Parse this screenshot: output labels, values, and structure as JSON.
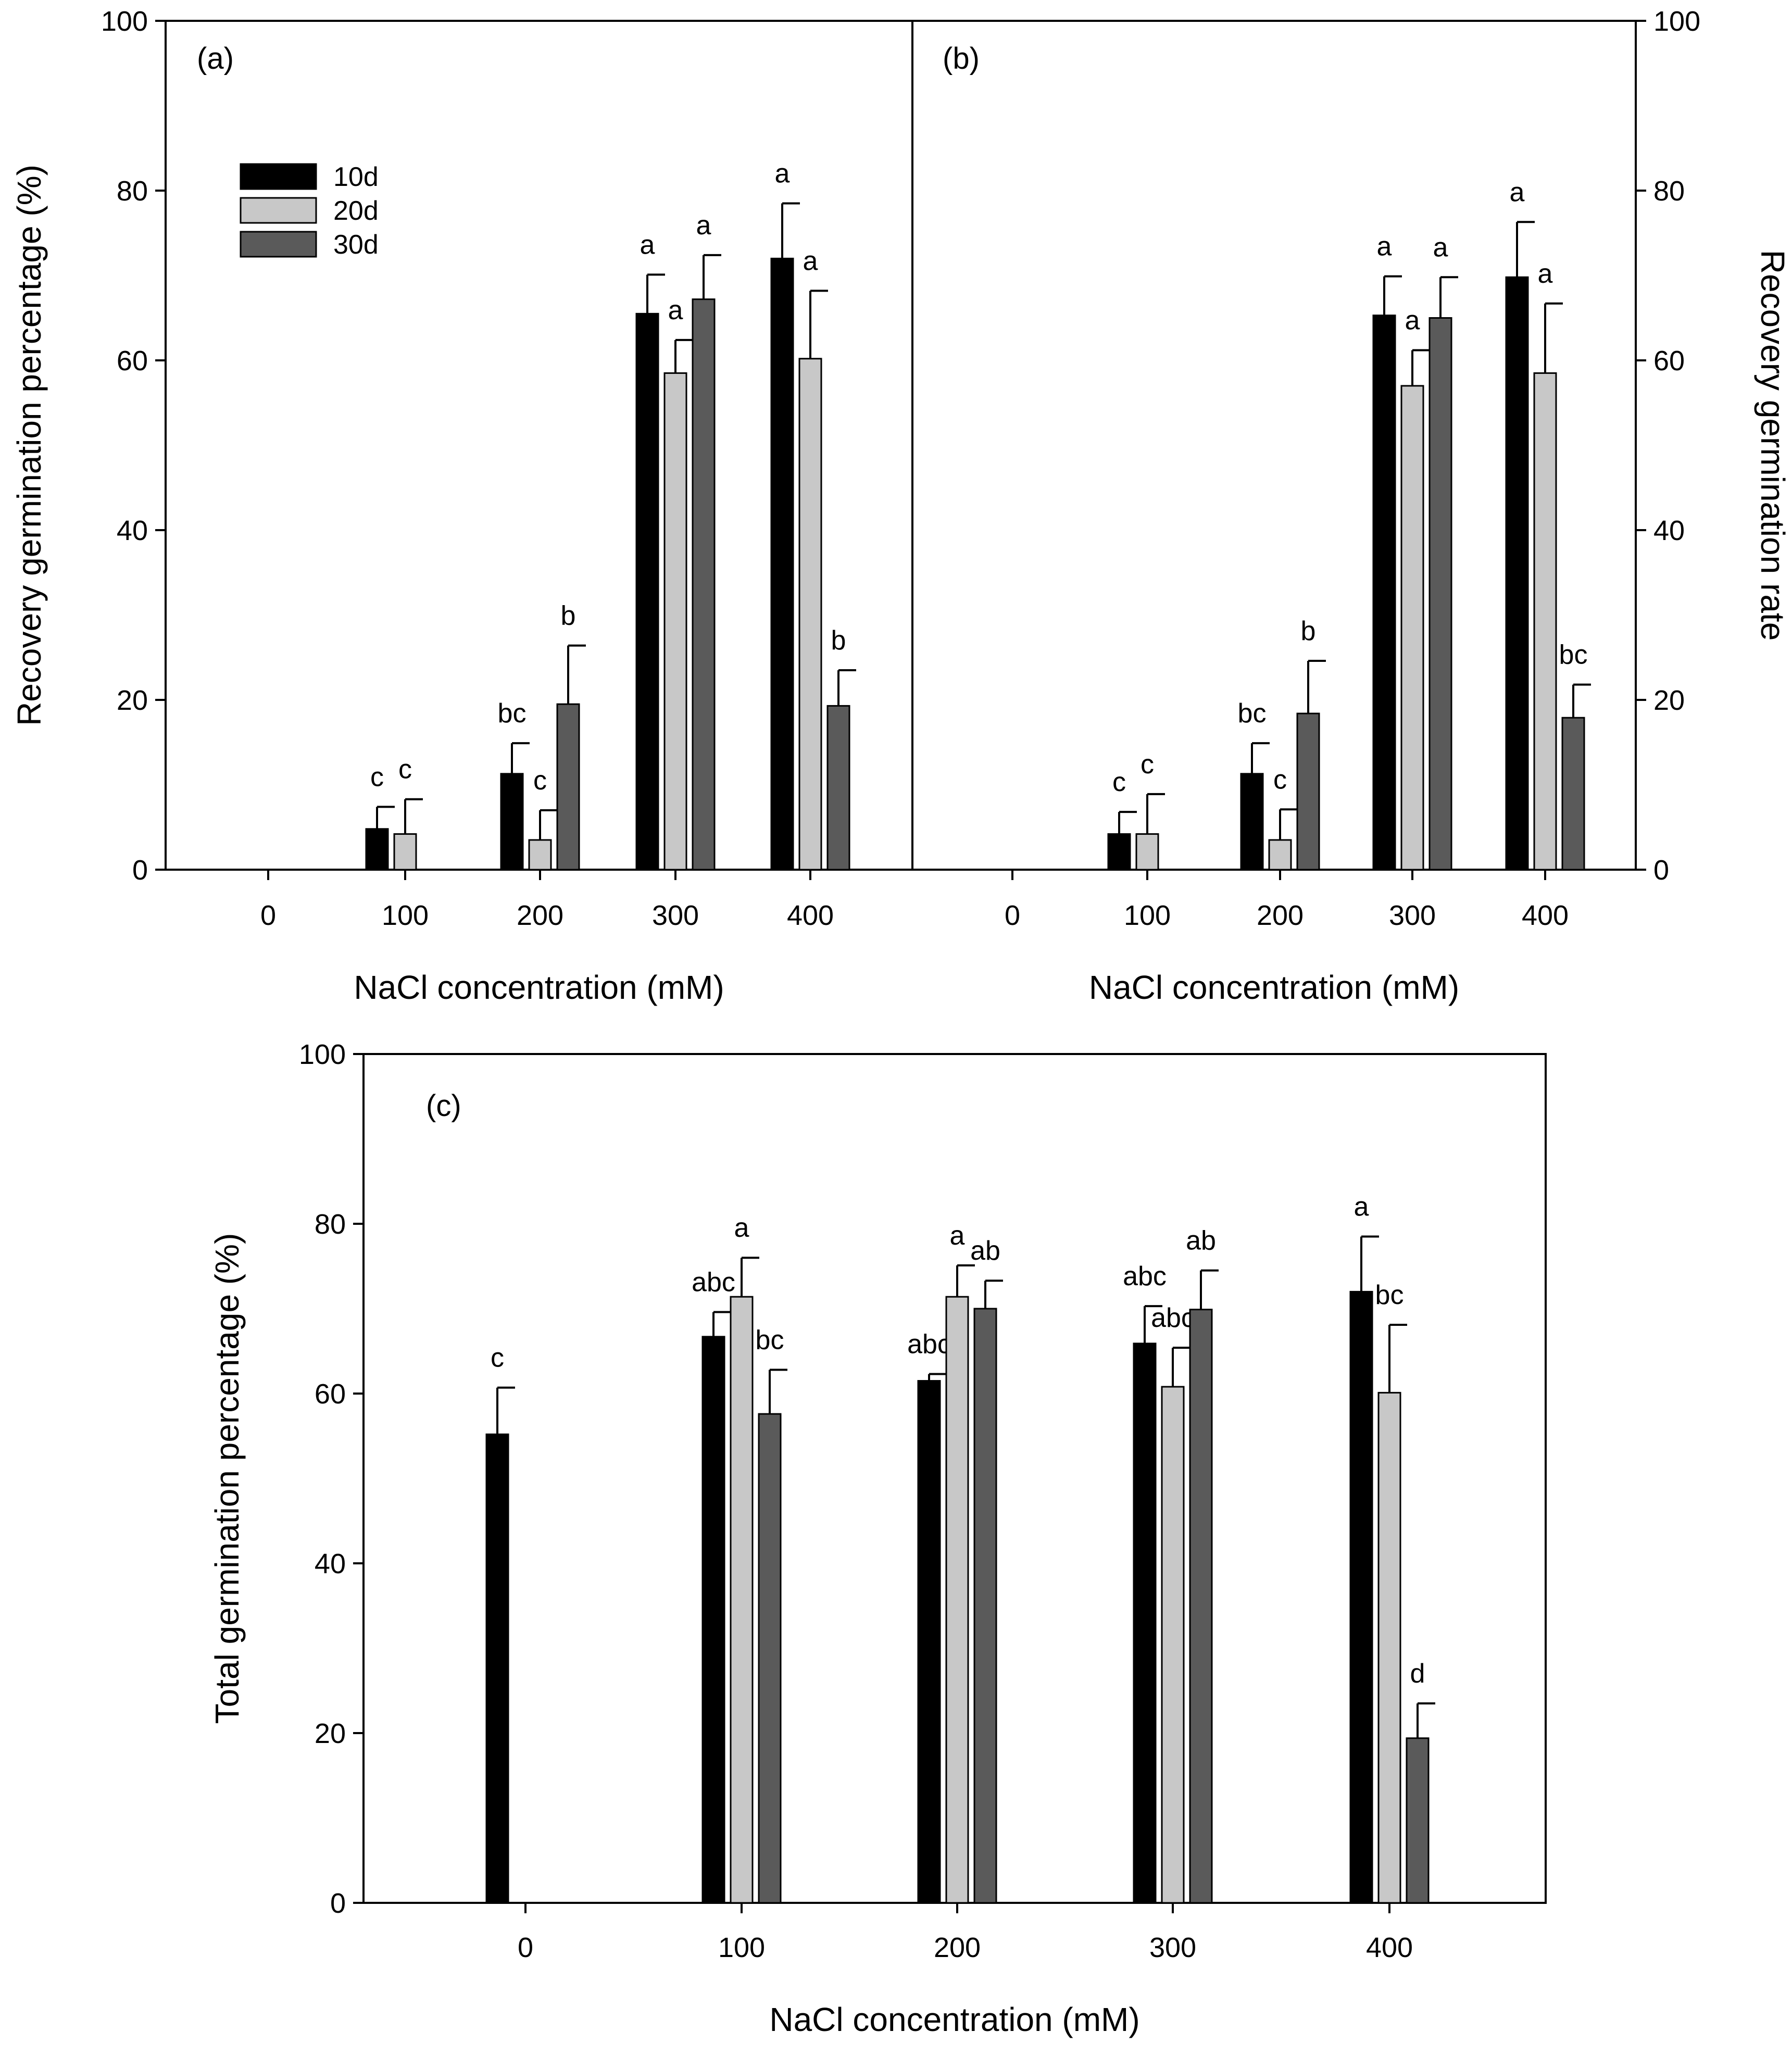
{
  "figure": {
    "legend": [
      {
        "label": "10d",
        "color": "#000000"
      },
      {
        "label": "20d",
        "color": "#c8c8c8"
      },
      {
        "label": "30d",
        "color": "#5a5a5a"
      }
    ]
  },
  "chart_data": [
    {
      "panel": "a",
      "panel_label": "(a)",
      "type": "bar",
      "xlabel": "NaCl concentration (mM)",
      "ylabel": "Recovery germination percentage (%)",
      "ylim": [
        0,
        100
      ],
      "yticks": [
        0,
        20,
        40,
        60,
        80,
        100
      ],
      "categories": [
        "0",
        "100",
        "200",
        "300",
        "400"
      ],
      "series": [
        {
          "name": "10d",
          "values": [
            0,
            4.8,
            11.3,
            65.5,
            72.0
          ],
          "errors": [
            0,
            2.6,
            3.6,
            4.6,
            6.5
          ],
          "letters": [
            "",
            "c",
            "bc",
            "a",
            "a"
          ]
        },
        {
          "name": "20d",
          "values": [
            0,
            4.2,
            3.5,
            58.5,
            60.2
          ],
          "errors": [
            0,
            4.1,
            3.5,
            3.9,
            8.0
          ],
          "letters": [
            "",
            "c",
            "c",
            "a",
            "a"
          ]
        },
        {
          "name": "30d",
          "values": [
            0,
            0,
            19.5,
            67.2,
            19.3
          ],
          "errors": [
            0,
            0,
            6.9,
            5.2,
            4.2
          ],
          "letters": [
            "",
            "",
            "b",
            "a",
            "b"
          ]
        }
      ]
    },
    {
      "panel": "b",
      "panel_label": "(b)",
      "type": "bar",
      "xlabel": "NaCl concentration (mM)",
      "ylabel": "Recovery germination rate",
      "ylim": [
        0,
        100
      ],
      "yticks": [
        0,
        20,
        40,
        60,
        80,
        100
      ],
      "categories": [
        "0",
        "100",
        "200",
        "300",
        "400"
      ],
      "series": [
        {
          "name": "10d",
          "values": [
            0,
            4.2,
            11.3,
            65.3,
            69.8
          ],
          "errors": [
            0,
            2.6,
            3.6,
            4.6,
            6.5
          ],
          "letters": [
            "",
            "c",
            "bc",
            "a",
            "a"
          ]
        },
        {
          "name": "20d",
          "values": [
            0,
            4.2,
            3.5,
            57.0,
            58.5
          ],
          "errors": [
            0,
            4.7,
            3.6,
            4.2,
            8.2
          ],
          "letters": [
            "",
            "c",
            "c",
            "a",
            "a"
          ]
        },
        {
          "name": "30d",
          "values": [
            0,
            0,
            18.4,
            65.0,
            17.9
          ],
          "errors": [
            0,
            0,
            6.2,
            4.8,
            3.9
          ],
          "letters": [
            "",
            "",
            "b",
            "a",
            "bc"
          ]
        }
      ]
    },
    {
      "panel": "c",
      "panel_label": "(c)",
      "type": "bar",
      "xlabel": "NaCl concentration (mM)",
      "ylabel": "Total germination percentage (%)",
      "ylim": [
        0,
        100
      ],
      "yticks": [
        0,
        20,
        40,
        60,
        80,
        100
      ],
      "categories": [
        "0",
        "100",
        "200",
        "300",
        "400"
      ],
      "series": [
        {
          "name": "10d",
          "values": [
            55.2,
            66.7,
            61.5,
            65.9,
            72.0
          ],
          "errors": [
            5.5,
            2.9,
            0.8,
            4.4,
            6.5
          ],
          "letters": [
            "c",
            "abc",
            "abc",
            "abc",
            "a"
          ]
        },
        {
          "name": "20d",
          "values": [
            0,
            71.4,
            71.4,
            60.8,
            60.1
          ],
          "errors": [
            0,
            4.6,
            3.7,
            4.6,
            8.0
          ],
          "letters": [
            "",
            "a",
            "a",
            "abc",
            "bc"
          ]
        },
        {
          "name": "30d",
          "values": [
            0,
            57.6,
            70.0,
            69.9,
            19.4
          ],
          "errors": [
            0,
            5.2,
            3.3,
            4.6,
            4.1
          ],
          "letters": [
            "",
            "bc",
            "ab",
            "ab",
            "d"
          ]
        }
      ]
    }
  ]
}
